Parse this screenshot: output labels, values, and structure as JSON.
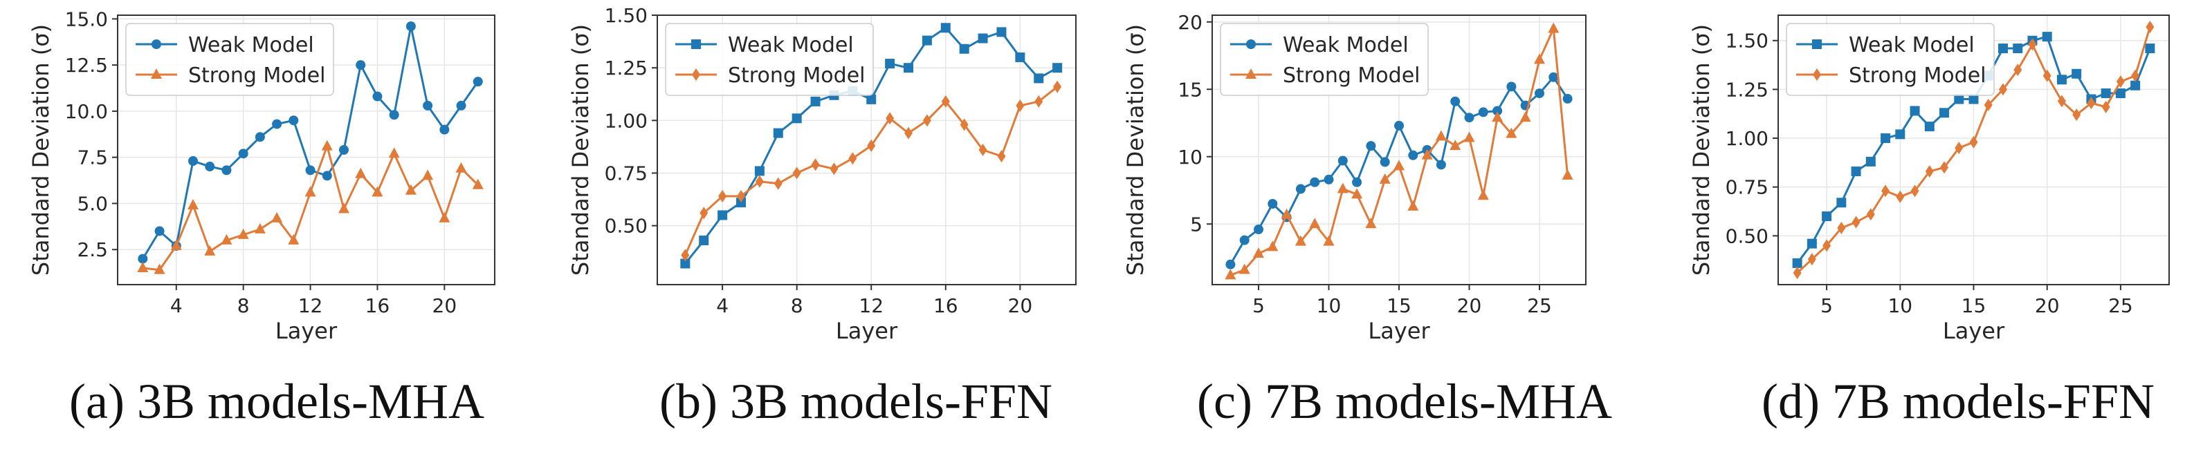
{
  "colors": {
    "weak": "#1f77b4",
    "strong": "#e07b39",
    "grid": "#e6e6e6",
    "axis": "#333333"
  },
  "chart_data": [
    {
      "type": "line",
      "caption": "(a) 3B models-MHA",
      "xlabel": "Layer",
      "ylabel": "Standard Deviation (σ)",
      "xlim": [
        0.5,
        23
      ],
      "ylim": [
        0.6,
        15.2
      ],
      "xticks": [
        4,
        8,
        12,
        16,
        20
      ],
      "yticks": [
        2.5,
        5.0,
        7.5,
        10.0,
        12.5,
        15.0
      ],
      "ytick_labels": [
        "2.5",
        "5.0",
        "7.5",
        "10.0",
        "12.5",
        "15.0"
      ],
      "x": [
        2,
        3,
        4,
        5,
        6,
        7,
        8,
        9,
        10,
        11,
        12,
        13,
        14,
        15,
        16,
        17,
        18,
        19,
        20,
        21,
        22
      ],
      "series": [
        {
          "name": "Weak Model",
          "marker": "circle",
          "values": [
            2.0,
            3.5,
            2.7,
            7.3,
            7.0,
            6.8,
            7.7,
            8.6,
            9.3,
            9.5,
            6.8,
            6.5,
            7.9,
            12.5,
            10.8,
            9.8,
            14.6,
            10.3,
            9.0,
            10.3,
            11.6
          ]
        },
        {
          "name": "Strong Model",
          "marker": "triangle",
          "values": [
            1.5,
            1.4,
            2.7,
            4.9,
            2.4,
            3.0,
            3.3,
            3.6,
            4.2,
            3.0,
            5.6,
            8.1,
            4.7,
            6.6,
            5.6,
            7.7,
            5.7,
            6.5,
            4.2,
            6.9,
            6.0
          ]
        }
      ]
    },
    {
      "type": "line",
      "caption": "(b) 3B models-FFN",
      "xlabel": "Layer",
      "ylabel": "Standard Deviation (σ)",
      "xlim": [
        0.5,
        23
      ],
      "ylim": [
        0.22,
        1.5
      ],
      "xticks": [
        4,
        8,
        12,
        16,
        20
      ],
      "yticks": [
        0.5,
        0.75,
        1.0,
        1.25,
        1.5
      ],
      "ytick_labels": [
        "0.50",
        "0.75",
        "1.00",
        "1.25",
        "1.50"
      ],
      "x": [
        2,
        3,
        4,
        5,
        6,
        7,
        8,
        9,
        10,
        11,
        12,
        13,
        14,
        15,
        16,
        17,
        18,
        19,
        20,
        21,
        22
      ],
      "series": [
        {
          "name": "Weak Model",
          "marker": "square",
          "values": [
            0.32,
            0.43,
            0.55,
            0.61,
            0.76,
            0.94,
            1.01,
            1.09,
            1.12,
            1.14,
            1.1,
            1.27,
            1.25,
            1.38,
            1.44,
            1.34,
            1.39,
            1.42,
            1.3,
            1.2,
            1.25
          ]
        },
        {
          "name": "Strong Model",
          "marker": "diamond",
          "values": [
            0.36,
            0.56,
            0.64,
            0.64,
            0.71,
            0.7,
            0.75,
            0.79,
            0.77,
            0.82,
            0.88,
            1.01,
            0.94,
            1.0,
            1.09,
            0.98,
            0.86,
            0.83,
            1.07,
            1.09,
            1.16
          ]
        }
      ]
    },
    {
      "type": "line",
      "caption": "(c) 7B models-MHA",
      "xlabel": "Layer",
      "ylabel": "Standard Deviation (σ)",
      "xlim": [
        1.7,
        28.3
      ],
      "ylim": [
        0.5,
        20.5
      ],
      "xticks": [
        5,
        10,
        15,
        20,
        25
      ],
      "yticks": [
        5,
        10,
        15,
        20
      ],
      "ytick_labels": [
        "5",
        "10",
        "15",
        "20"
      ],
      "x": [
        3,
        4,
        5,
        6,
        7,
        8,
        9,
        10,
        11,
        12,
        13,
        14,
        15,
        16,
        17,
        18,
        19,
        20,
        21,
        22,
        23,
        24,
        25,
        26,
        27
      ],
      "series": [
        {
          "name": "Weak Model",
          "marker": "circle",
          "values": [
            2.0,
            3.8,
            4.6,
            6.5,
            5.5,
            7.6,
            8.1,
            8.3,
            9.7,
            8.1,
            10.8,
            9.6,
            12.3,
            10.1,
            10.5,
            9.4,
            14.1,
            12.9,
            13.3,
            13.4,
            15.2,
            13.8,
            14.7,
            15.9,
            14.3
          ]
        },
        {
          "name": "Strong Model",
          "marker": "triangle",
          "values": [
            1.2,
            1.6,
            2.8,
            3.3,
            5.7,
            3.7,
            5.0,
            3.7,
            7.6,
            7.2,
            5.0,
            8.3,
            9.3,
            6.3,
            10.1,
            11.5,
            10.8,
            11.4,
            7.1,
            12.9,
            11.7,
            12.9,
            17.2,
            19.5,
            8.6
          ]
        }
      ]
    },
    {
      "type": "line",
      "caption": "(d) 7B models-FFN",
      "xlabel": "Layer",
      "ylabel": "Standard Deviation (σ)",
      "xlim": [
        1.7,
        28.3
      ],
      "ylim": [
        0.25,
        1.63
      ],
      "xticks": [
        5,
        10,
        15,
        20,
        25
      ],
      "yticks": [
        0.5,
        0.75,
        1.0,
        1.25,
        1.5
      ],
      "ytick_labels": [
        "0.50",
        "0.75",
        "1.00",
        "1.25",
        "1.50"
      ],
      "x": [
        3,
        4,
        5,
        6,
        7,
        8,
        9,
        10,
        11,
        12,
        13,
        14,
        15,
        16,
        17,
        18,
        19,
        20,
        21,
        22,
        23,
        24,
        25,
        26,
        27
      ],
      "series": [
        {
          "name": "Weak Model",
          "marker": "square",
          "values": [
            0.36,
            0.46,
            0.6,
            0.67,
            0.83,
            0.88,
            1.0,
            1.02,
            1.14,
            1.06,
            1.13,
            1.2,
            1.2,
            1.32,
            1.46,
            1.46,
            1.5,
            1.52,
            1.3,
            1.33,
            1.2,
            1.23,
            1.23,
            1.27,
            1.46
          ]
        },
        {
          "name": "Strong Model",
          "marker": "diamond",
          "values": [
            0.31,
            0.38,
            0.45,
            0.54,
            0.57,
            0.61,
            0.73,
            0.7,
            0.73,
            0.83,
            0.85,
            0.95,
            0.98,
            1.17,
            1.25,
            1.35,
            1.48,
            1.32,
            1.19,
            1.12,
            1.18,
            1.16,
            1.29,
            1.32,
            1.57
          ]
        }
      ]
    }
  ]
}
